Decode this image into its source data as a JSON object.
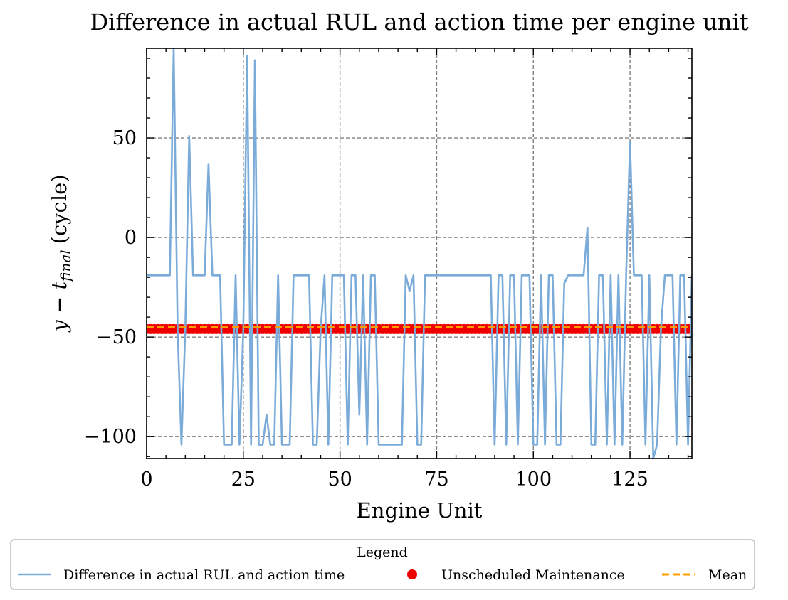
{
  "chart_data": {
    "type": "line",
    "title": "Difference in actual RUL and action time per engine unit",
    "xlabel": "Engine Unit",
    "ylabel_main": "y − t",
    "ylabel_sub": "final",
    "ylabel_unit": "(cycle)",
    "xlim": [
      0,
      141
    ],
    "ylim": [
      -111,
      95
    ],
    "xticks": [
      0,
      25,
      50,
      75,
      100,
      125
    ],
    "xtick_labels": [
      "0",
      "25",
      "50",
      "75",
      "100",
      "125"
    ],
    "yticks": [
      -100,
      -50,
      0,
      50
    ],
    "ytick_labels": [
      "−100",
      "−50",
      "0",
      "50"
    ],
    "grid": true,
    "legend": {
      "title": "Legend",
      "placement": "below",
      "entries": [
        "Difference in actual RUL and action time",
        "Unscheduled Maintenance",
        "Mean"
      ]
    },
    "series": [
      {
        "name": "Difference in actual RUL and action time",
        "color": "#7aabd9",
        "style": "line",
        "x": [
          0,
          1,
          2,
          3,
          4,
          5,
          6,
          7,
          8,
          9,
          10,
          11,
          12,
          13,
          14,
          15,
          16,
          17,
          18,
          19,
          20,
          21,
          22,
          23,
          24,
          25,
          26,
          27,
          28,
          29,
          30,
          31,
          32,
          33,
          34,
          35,
          36,
          37,
          38,
          39,
          40,
          41,
          42,
          43,
          44,
          45,
          46,
          47,
          48,
          49,
          50,
          51,
          52,
          53,
          54,
          55,
          56,
          57,
          58,
          59,
          60,
          61,
          62,
          63,
          64,
          65,
          66,
          67,
          68,
          69,
          70,
          71,
          72,
          73,
          74,
          75,
          76,
          77,
          78,
          79,
          80,
          81,
          82,
          83,
          84,
          85,
          86,
          87,
          88,
          89,
          90,
          91,
          92,
          93,
          94,
          95,
          96,
          97,
          98,
          99,
          100,
          101,
          102,
          103,
          104,
          105,
          106,
          107,
          108,
          109,
          110,
          111,
          112,
          113,
          114,
          115,
          116,
          117,
          118,
          119,
          120,
          121,
          122,
          123,
          124,
          125,
          126,
          127,
          128,
          129,
          130,
          131,
          132,
          133,
          134,
          135,
          136,
          137,
          138,
          139,
          140,
          141
        ],
        "y": [
          -19,
          -19,
          -19,
          -19,
          -19,
          -19,
          -19,
          95,
          -46,
          -104,
          -46,
          51,
          -19,
          -19,
          -19,
          -19,
          37,
          -19,
          -19,
          -19,
          -104,
          -104,
          -104,
          -19,
          -104,
          -46,
          91,
          -104,
          89,
          -104,
          -104,
          -89,
          -104,
          -104,
          -19,
          -104,
          -104,
          -104,
          -19,
          -19,
          -19,
          -19,
          -19,
          -104,
          -104,
          -46,
          -19,
          -104,
          -19,
          -19,
          -19,
          -19,
          -104,
          -19,
          -19,
          -89,
          -19,
          -104,
          -19,
          -19,
          -104,
          -104,
          -104,
          -104,
          -104,
          -104,
          -104,
          -19,
          -27,
          -19,
          -104,
          -104,
          -19,
          -19,
          -19,
          -19,
          -19,
          -19,
          -19,
          -19,
          -19,
          -19,
          -19,
          -19,
          -19,
          -19,
          -19,
          -19,
          -19,
          -19,
          -104,
          -19,
          -19,
          -104,
          -19,
          -19,
          -104,
          -19,
          -19,
          -19,
          -104,
          -104,
          -19,
          -104,
          -19,
          -19,
          -104,
          -104,
          -23,
          -19,
          -19,
          -19,
          -19,
          -19,
          5,
          -104,
          -104,
          -19,
          -19,
          -104,
          -19,
          -104,
          -19,
          -104,
          -19,
          48,
          -19,
          -19,
          -19,
          -104,
          -19,
          -111,
          -104,
          -46,
          -19,
          -19,
          -19,
          -104,
          -19,
          -19,
          -104,
          -19
        ]
      },
      {
        "name": "Unscheduled Maintenance",
        "color": "#ee0000",
        "style": "scatter",
        "y_value": -46,
        "x_start": 0,
        "x_end": 141
      },
      {
        "name": "Mean",
        "color": "#ff9e00",
        "style": "dashed",
        "y_value": -45
      }
    ]
  }
}
